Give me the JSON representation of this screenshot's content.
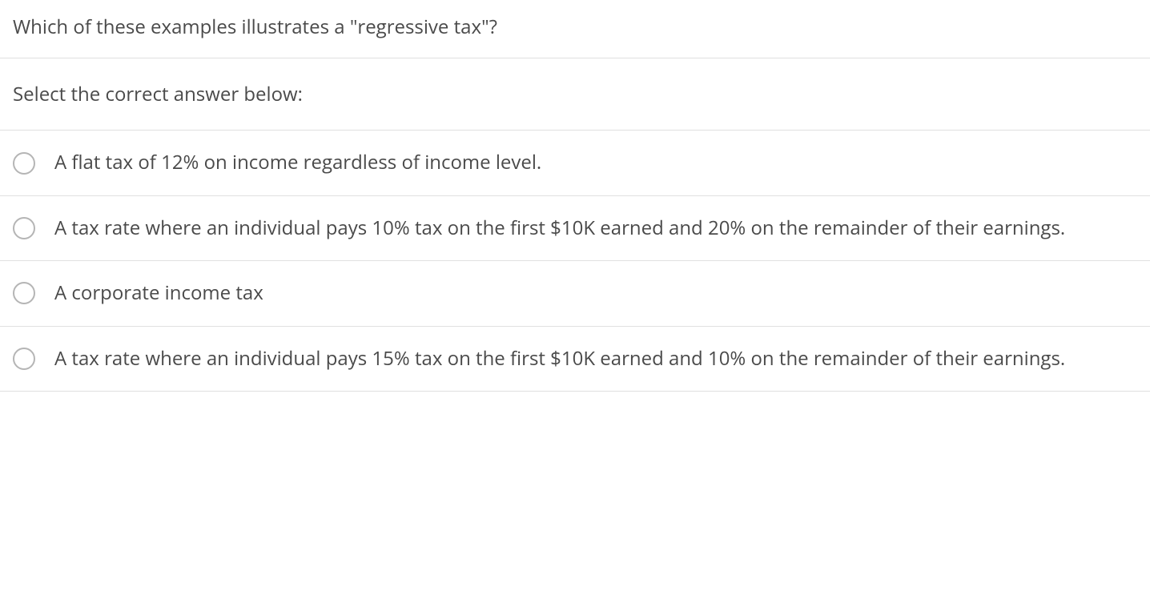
{
  "question": "Which of these examples illustrates a \"regressive tax\"?",
  "instruction": "Select the correct answer below:",
  "options": [
    {
      "label": "A flat tax of 12% on income regardless of income level."
    },
    {
      "label": "A tax rate where an individual pays 10% tax on the first $10K earned and 20% on the remainder of their earnings."
    },
    {
      "label": "A corporate income tax"
    },
    {
      "label": "A tax rate where an individual pays 15% tax on the first $10K earned and 10% on the remainder of their earnings."
    }
  ],
  "colors": {
    "text": "#4a4a4a",
    "divider": "#e0e0e0",
    "radio_border": "#b5b5b5",
    "background": "#ffffff"
  },
  "typography": {
    "font_family": "Open Sans, Segoe UI, Arial, sans-serif",
    "question_fontsize": 24,
    "option_fontsize": 24
  }
}
